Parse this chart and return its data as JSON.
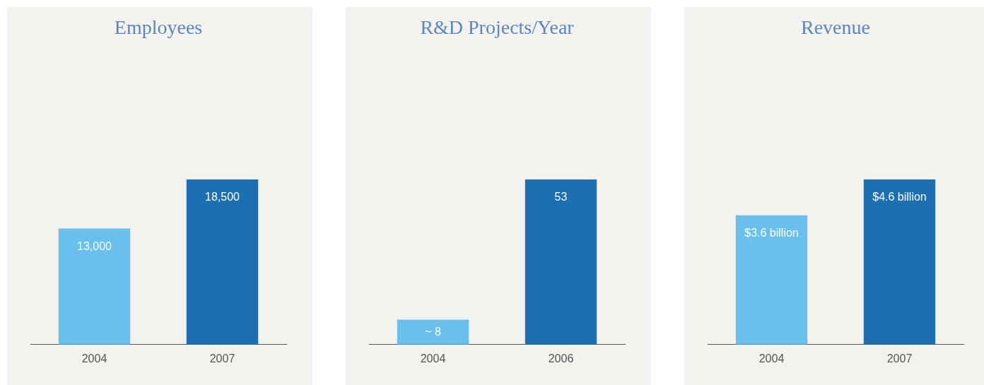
{
  "chart_data": [
    {
      "type": "bar",
      "title": "Employees",
      "categories": [
        "2004",
        "2007"
      ],
      "values": [
        13000,
        18500
      ],
      "colors": [
        "#69c0ec",
        "#1c6fb0"
      ],
      "value_labels": [
        "13,000",
        "18,500"
      ]
    },
    {
      "type": "bar",
      "title": "R&D Projects/Year",
      "categories": [
        "2004",
        "2006"
      ],
      "values": [
        8,
        53
      ],
      "colors": [
        "#69c0ec",
        "#1c6fb0"
      ],
      "value_labels": [
        "~ 8",
        "53"
      ]
    },
    {
      "type": "bar",
      "title": "Revenue",
      "categories": [
        "2004",
        "2007"
      ],
      "values": [
        3.6,
        4.6
      ],
      "colors": [
        "#69c0ec",
        "#1c6fb0"
      ],
      "value_labels": [
        "$3.6 billion",
        "$4.6 billion"
      ]
    }
  ]
}
